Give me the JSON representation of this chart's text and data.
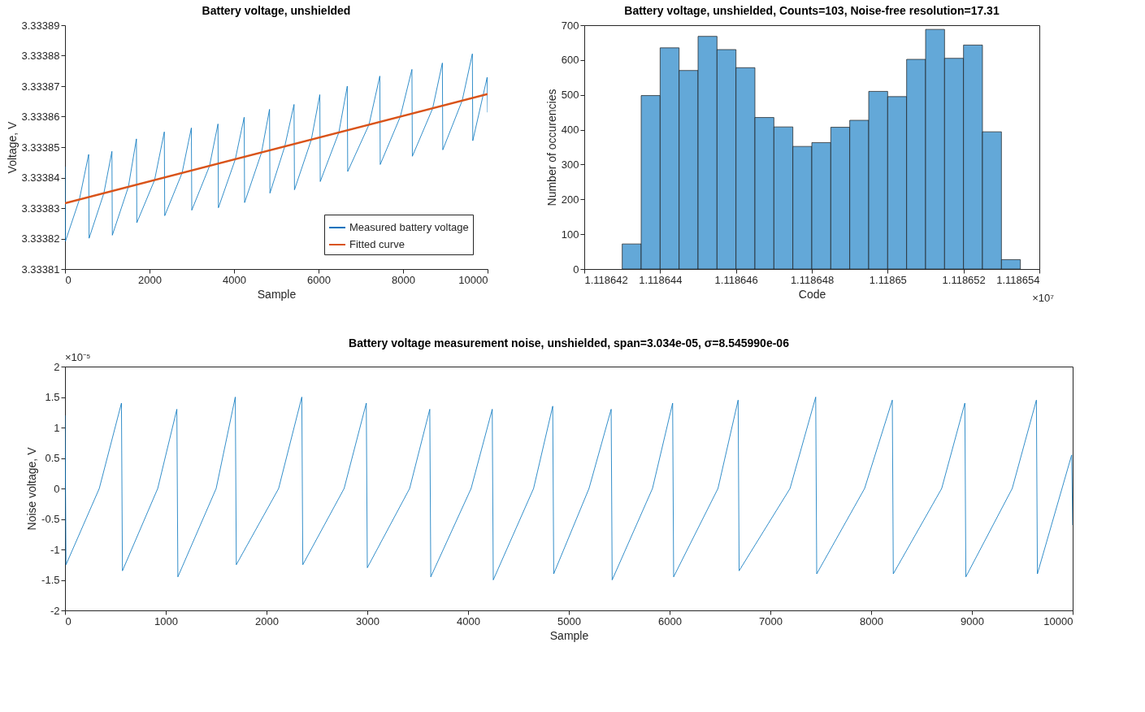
{
  "chart_data": [
    {
      "type": "line",
      "title": "Battery voltage, unshielded",
      "xlabel": "Sample",
      "ylabel": "Voltage, V",
      "legend": "bottom right",
      "x": [
        0,
        10,
        340,
        560,
        570,
        920,
        1110,
        1120,
        1500,
        1690,
        1700,
        2120,
        2350,
        2360,
        2770,
        2990,
        3000,
        3420,
        3620,
        3630,
        4030,
        4240,
        4250,
        4650,
        4840,
        4850,
        5200,
        5420,
        5430,
        5830,
        6030,
        6040,
        6480,
        6680,
        6690,
        7195,
        7450,
        7460,
        7935,
        8210,
        8220,
        8700,
        8930,
        8940,
        9400,
        9640,
        9650,
        9990,
        10000
      ],
      "xlim": [
        0,
        10000
      ],
      "xticks": [
        0,
        2000,
        4000,
        6000,
        8000,
        10000
      ],
      "ylim": [
        3.33381,
        3.33389
      ],
      "yticks": [
        3.33381,
        3.33382,
        3.33383,
        3.33384,
        3.33385,
        3.33386,
        3.33387,
        3.33388,
        3.33389
      ],
      "series": [
        {
          "name": "Measured battery voltage",
          "color": "#0072bd",
          "values": [
            3.3338436,
            3.3338191,
            3.3338328,
            3.3338476,
            3.3338201,
            3.3338349,
            3.3338486,
            3.3338211,
            3.333837,
            3.3338527,
            3.3338252,
            3.3338392,
            3.333855,
            3.3338275,
            3.3338415,
            3.3338563,
            3.3338293,
            3.3338438,
            3.3338576,
            3.3338301,
            3.333846,
            3.3338598,
            3.3338318,
            3.3338482,
            3.3338624,
            3.3338349,
            3.3338502,
            3.333864,
            3.333836,
            3.3338525,
            3.3338672,
            3.3338387,
            3.3338548,
            3.33387,
            3.333842,
            3.3338574,
            3.3338733,
            3.3338443,
            3.33386,
            3.3338755,
            3.333847,
            3.3338627,
            3.3338776,
            3.3338491,
            3.3338653,
            3.3338806,
            3.3338521,
            3.3338729,
            3.3338614
          ]
        },
        {
          "name": "Fitted curve",
          "color": "#d95319",
          "type": "line",
          "x": [
            0,
            10000
          ],
          "values": [
            3.3338316,
            3.3338674
          ]
        }
      ]
    },
    {
      "type": "histogram",
      "title": "Battery voltage, unshielded, Counts=103, Noise-free resolution=17.31",
      "xlabel": "Code",
      "ylabel": "Number of occurencies",
      "annotations": [
        "×10⁷"
      ],
      "color": "#63a8d8",
      "bins": [
        1.118643,
        1.1186435,
        1.118644,
        1.1186445,
        1.118645,
        1.1186455,
        1.118646,
        1.1186465,
        1.118647,
        1.1186475,
        1.118648,
        1.1186485,
        1.118649,
        1.1186495,
        1.11865,
        1.1186505,
        1.118651,
        1.1186515,
        1.118652,
        1.1186525,
        1.118653,
        1.1186535
      ],
      "values": [
        72,
        498,
        635,
        570,
        668,
        630,
        578,
        435,
        408,
        352,
        363,
        407,
        427,
        510,
        495,
        602,
        688,
        605,
        643,
        394,
        27
      ],
      "xlim": [
        1.118642,
        1.118654
      ],
      "xticks": [
        1.118642,
        1.118644,
        1.118646,
        1.118648,
        1.11865,
        1.118652,
        1.118654
      ],
      "ylim": [
        0,
        700
      ],
      "yticks": [
        0,
        100,
        200,
        300,
        400,
        500,
        600,
        700
      ]
    },
    {
      "type": "line",
      "title": "Battery voltage measurement noise, unshielded, span=3.034e-05, σ=8.545990e-06",
      "xlabel": "Sample",
      "ylabel": "Noise voltage, V",
      "annotations": [
        "×10⁻⁵"
      ],
      "x": [
        0,
        10,
        340,
        560,
        570,
        920,
        1110,
        1120,
        1500,
        1690,
        1700,
        2120,
        2350,
        2360,
        2770,
        2990,
        3000,
        3420,
        3620,
        3630,
        4030,
        4240,
        4250,
        4650,
        4840,
        4850,
        5200,
        5420,
        5430,
        5830,
        6030,
        6040,
        6480,
        6680,
        6690,
        7195,
        7450,
        7460,
        7935,
        8210,
        8220,
        8700,
        8930,
        8940,
        9400,
        9640,
        9650,
        9990,
        10000
      ],
      "xlim": [
        0,
        10000
      ],
      "xticks": [
        0,
        1000,
        2000,
        3000,
        4000,
        5000,
        6000,
        7000,
        8000,
        9000,
        10000
      ],
      "ylim": [
        -2,
        2
      ],
      "yticks": [
        -2,
        -1.5,
        -1,
        -0.5,
        0,
        0.5,
        1,
        1.5,
        2
      ],
      "series": [
        {
          "color": "#0072bd",
          "values": [
            1.2,
            -1.25,
            0,
            1.4,
            -1.35,
            0,
            1.3,
            -1.45,
            0,
            1.5,
            -1.25,
            0,
            1.5,
            -1.25,
            0,
            1.4,
            -1.3,
            0,
            1.3,
            -1.45,
            0,
            1.3,
            -1.5,
            0,
            1.35,
            -1.4,
            0,
            1.3,
            -1.5,
            0,
            1.4,
            -1.45,
            0,
            1.45,
            -1.35,
            0,
            1.5,
            -1.4,
            0,
            1.45,
            -1.4,
            0,
            1.4,
            -1.45,
            0,
            1.45,
            -1.4,
            0.55,
            -0.6
          ]
        }
      ]
    }
  ]
}
